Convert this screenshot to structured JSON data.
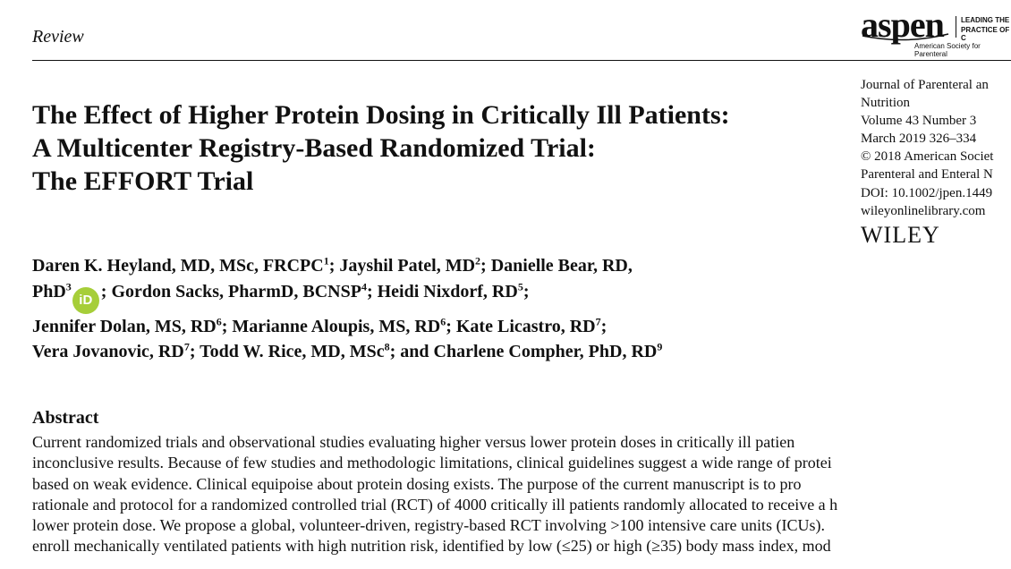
{
  "header": {
    "section": "Review"
  },
  "logo": {
    "word": "aspen",
    "tagline_1": "LEADING THE",
    "tagline_2": "PRACTICE OF C",
    "sub": "American Society for Parenteral"
  },
  "journal": {
    "lines": [
      "Journal of Parenteral an",
      "Nutrition",
      "Volume 43 Number 3",
      "March 2019 326–334",
      "© 2018 American Societ",
      "Parenteral and Enteral N",
      "DOI: 10.1002/jpen.1449",
      "wileyonlinelibrary.com"
    ],
    "publisher": "WILEY"
  },
  "title": {
    "lines": [
      "The Effect of Higher Protein Dosing in Critically Ill Patients:",
      "A Multicenter Registry-Based Randomized Trial:",
      "The EFFORT Trial"
    ]
  },
  "authors": {
    "a1": "Daren K. Heyland, MD, MSc, FRCPC",
    "a1_sup": "1",
    "a2": "; Jayshil Patel, MD",
    "a2_sup": "2",
    "a3": "; Danielle Bear, RD,",
    "a3b": "PhD",
    "a3_sup": "3",
    "orcid": "iD",
    "a4": "; Gordon Sacks, PharmD, BCNSP",
    "a4_sup": "4",
    "a5": "; Heidi Nixdorf, RD",
    "a5_sup": "5",
    "a5_end": ";",
    "a6": "Jennifer Dolan, MS, RD",
    "a6_sup": "6",
    "a7": "; Marianne Aloupis, MS, RD",
    "a7_sup": "6",
    "a8": "; Kate Licastro, RD",
    "a8_sup": "7",
    "a8_end": ";",
    "a9": "Vera Jovanovic, RD",
    "a9_sup": "7",
    "a10": "; Todd W. Rice, MD, MSc",
    "a10_sup": "8",
    "a11": "; and Charlene Compher, PhD, RD",
    "a11_sup": "9"
  },
  "abstract": {
    "heading": "Abstract",
    "lines": [
      "Current randomized trials and observational studies evaluating higher versus lower protein doses in critically ill patien",
      "inconclusive results. Because of few studies and methodologic limitations, clinical guidelines suggest a wide range of protei",
      "based on weak evidence. Clinical equipoise about protein dosing exists. The purpose of the current manuscript is to pro",
      "rationale and protocol for a randomized controlled trial (RCT) of 4000 critically ill patients randomly allocated to receive a h",
      "lower protein dose. We propose a global, volunteer-driven, registry-based RCT involving >100 intensive care units (ICUs).",
      "enroll mechanically ventilated patients with high nutrition risk, identified by low (≤25) or high (≥35) body mass index, mod"
    ]
  }
}
